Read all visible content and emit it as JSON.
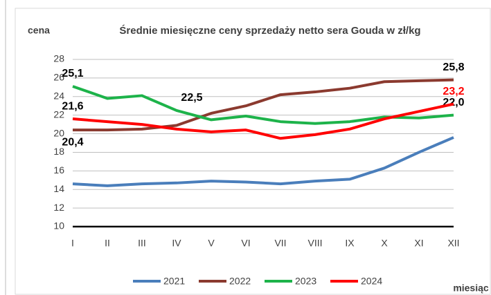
{
  "chart_data": {
    "type": "line",
    "title": "Średnie miesięczne ceny sprzedaży netto sera Gouda w zł/kg",
    "y_label": "cena",
    "x_label": "miesiąc",
    "categories": [
      "I",
      "II",
      "III",
      "IV",
      "V",
      "VI",
      "VII",
      "VIII",
      "IX",
      "X",
      "XI",
      "XII"
    ],
    "ylim": [
      10,
      28
    ],
    "yticks": [
      10,
      12,
      14,
      16,
      18,
      20,
      22,
      24,
      26,
      28
    ],
    "grid": true,
    "series": [
      {
        "name": "2021",
        "color": "#4a7ebb",
        "values": [
          14.6,
          14.4,
          14.6,
          14.7,
          14.9,
          14.8,
          14.6,
          14.9,
          15.1,
          16.3,
          18.0,
          19.6
        ]
      },
      {
        "name": "2022",
        "color": "#8b3a2f",
        "values": [
          20.4,
          20.4,
          20.5,
          20.9,
          22.2,
          23.0,
          24.2,
          24.5,
          24.9,
          25.6,
          25.7,
          25.8
        ],
        "value_labels": [
          "20,4",
          null,
          null,
          null,
          null,
          null,
          null,
          null,
          null,
          null,
          null,
          "25,8"
        ]
      },
      {
        "name": "2023",
        "color": "#1db34a",
        "values": [
          25.1,
          23.8,
          24.1,
          22.5,
          21.5,
          21.9,
          21.3,
          21.1,
          21.3,
          21.8,
          21.7,
          22.0
        ],
        "value_labels": [
          "25,1",
          null,
          null,
          "22,5",
          null,
          null,
          null,
          null,
          null,
          null,
          null,
          "22,0"
        ]
      },
      {
        "name": "2024",
        "color": "#ff0000",
        "values": [
          21.6,
          21.3,
          21.0,
          20.5,
          20.2,
          20.4,
          19.5,
          19.9,
          20.5,
          21.6,
          22.4,
          23.2
        ],
        "value_labels": [
          "21,6",
          null,
          null,
          null,
          null,
          null,
          null,
          null,
          null,
          null,
          null,
          "23,2"
        ],
        "value_label_colors": [
          null,
          null,
          null,
          null,
          null,
          null,
          null,
          null,
          null,
          null,
          null,
          "#ff0000"
        ]
      }
    ]
  }
}
